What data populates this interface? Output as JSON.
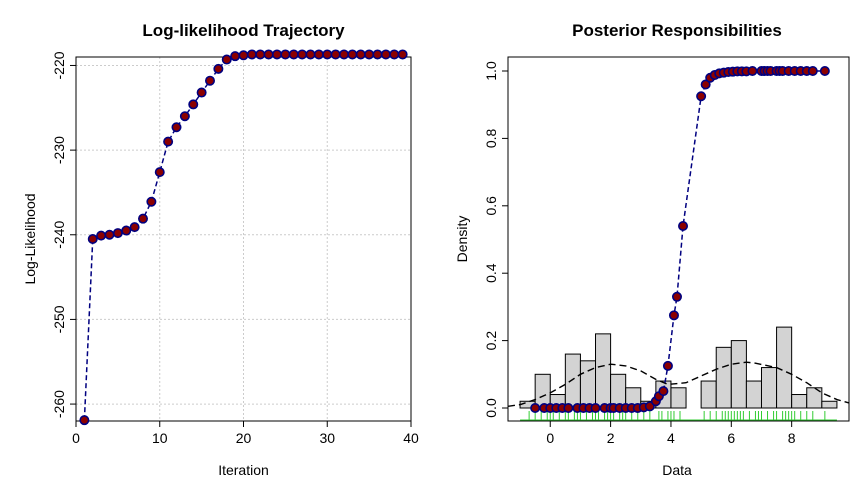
{
  "chart_data": [
    {
      "type": "line",
      "title": "Log-likelihood Trajectory",
      "xlabel": "Iteration",
      "ylabel": "Log-Likelihood",
      "xlim": [
        0,
        40
      ],
      "ylim": [
        -262,
        -219
      ],
      "x_ticks": [
        0,
        10,
        20,
        30,
        40
      ],
      "y_ticks": [
        -260,
        -250,
        -240,
        -230,
        -220
      ],
      "x_tick_labels": [
        "0",
        "10",
        "20",
        "30",
        "40"
      ],
      "y_tick_labels": [
        "-260",
        "-250",
        "-240",
        "-230",
        "-220"
      ],
      "grid": true,
      "line_color": "#000080",
      "marker_fill": "#8b0000",
      "marker_edge": "#000080",
      "series": [
        {
          "x": [
            1,
            2,
            3,
            4,
            5,
            6,
            7,
            8,
            9,
            10,
            11,
            12,
            13,
            14,
            15,
            16,
            17,
            18,
            19,
            20,
            21,
            22,
            23,
            24,
            25,
            26,
            27,
            28,
            29,
            30,
            31,
            32,
            33,
            34,
            35,
            36,
            37,
            38,
            39
          ],
          "values": [
            -261.9,
            -240.5,
            -240.1,
            -240.0,
            -239.8,
            -239.5,
            -239.1,
            -238.1,
            -236.1,
            -232.6,
            -229.0,
            -227.3,
            -226.0,
            -224.6,
            -223.2,
            -221.8,
            -220.4,
            -219.3,
            -218.9,
            -218.8,
            -218.7,
            -218.7,
            -218.7,
            -218.7,
            -218.7,
            -218.7,
            -218.7,
            -218.7,
            -218.7,
            -218.7,
            -218.7,
            -218.7,
            -218.7,
            -218.7,
            -218.7,
            -218.7,
            -218.7,
            -218.7,
            -218.7
          ]
        }
      ]
    },
    {
      "type": "bar",
      "title": "Posterior Responsibilities",
      "xlabel": "Data",
      "ylabel": "Density",
      "xlim": [
        -1.4,
        9.9
      ],
      "ylim": [
        0,
        1.0
      ],
      "x_ticks": [
        0,
        2,
        4,
        6,
        8
      ],
      "y_ticks": [
        0.0,
        0.2,
        0.4,
        0.6,
        0.8,
        1.0
      ],
      "x_tick_labels": [
        "0",
        "2",
        "4",
        "6",
        "8"
      ],
      "y_tick_labels": [
        "0.0",
        "0.2",
        "0.4",
        "0.6",
        "0.8",
        "1.0"
      ],
      "grid": false,
      "histogram": {
        "bin_edges": [
          -1.0,
          -0.5,
          0.0,
          0.5,
          1.0,
          1.5,
          2.0,
          2.5,
          3.0,
          3.5,
          4.0,
          4.5,
          5.0,
          5.5,
          6.0,
          6.5,
          7.0,
          7.5,
          8.0,
          8.5,
          9.0,
          9.5
        ],
        "densities": [
          0.02,
          0.1,
          0.04,
          0.16,
          0.14,
          0.22,
          0.1,
          0.06,
          0.02,
          0.08,
          0.06,
          0.0,
          0.08,
          0.18,
          0.2,
          0.08,
          0.12,
          0.24,
          0.04,
          0.06,
          0.02
        ],
        "fill": "#d3d3d3"
      },
      "mixture_density": {
        "x": [
          -1.4,
          -1.0,
          -0.5,
          0.0,
          0.5,
          1.0,
          1.5,
          2.0,
          2.5,
          3.0,
          3.5,
          3.9,
          4.5,
          5.0,
          5.5,
          6.0,
          6.5,
          6.8,
          7.5,
          8.0,
          8.5,
          9.0,
          9.5,
          9.9
        ],
        "values": [
          0.005,
          0.01,
          0.025,
          0.045,
          0.07,
          0.1,
          0.12,
          0.13,
          0.125,
          0.11,
          0.085,
          0.07,
          0.075,
          0.095,
          0.115,
          0.13,
          0.136,
          0.133,
          0.12,
          0.1,
          0.075,
          0.045,
          0.025,
          0.015
        ],
        "style": "dashed"
      },
      "rug": {
        "x": [
          -0.7,
          -0.5,
          -0.3,
          -0.1,
          0.0,
          0.1,
          0.3,
          0.5,
          0.6,
          0.8,
          0.9,
          1.0,
          1.2,
          1.4,
          1.5,
          1.6,
          1.8,
          1.9,
          2.0,
          2.1,
          2.3,
          2.4,
          2.5,
          2.7,
          2.9,
          3.1,
          3.3,
          3.6,
          3.7,
          3.9,
          4.0,
          4.1,
          4.3,
          5.1,
          5.3,
          5.5,
          5.7,
          5.8,
          5.9,
          6.0,
          6.1,
          6.2,
          6.3,
          6.4,
          6.6,
          6.8,
          6.9,
          7.0,
          7.2,
          7.4,
          7.5,
          7.7,
          7.8,
          7.9,
          8.0,
          8.1,
          8.3,
          8.5,
          8.7,
          9.1
        ],
        "color": "#33cc33"
      },
      "responsibilities": {
        "x": [
          -0.5,
          -0.2,
          0.0,
          0.2,
          0.4,
          0.6,
          0.9,
          1.1,
          1.3,
          1.5,
          1.8,
          2.0,
          2.1,
          2.3,
          2.5,
          2.7,
          2.9,
          3.1,
          3.3,
          3.5,
          3.6,
          3.75,
          3.9,
          4.1,
          4.2,
          4.4,
          5.0,
          5.15,
          5.3,
          5.45,
          5.6,
          5.75,
          5.9,
          6.05,
          6.2,
          6.35,
          6.5,
          6.7,
          7.0,
          7.1,
          7.2,
          7.3,
          7.5,
          7.6,
          7.7,
          7.9,
          8.1,
          8.3,
          8.5,
          8.7,
          9.1
        ],
        "values": [
          0.0,
          0.0,
          0.0,
          0.0,
          0.0,
          0.0,
          0.0,
          0.0,
          0.0,
          0.0,
          0.0,
          0.0,
          0.0,
          0.0,
          0.0,
          0.0,
          0.0,
          0.002,
          0.005,
          0.02,
          0.035,
          0.05,
          0.125,
          0.275,
          0.33,
          0.54,
          0.925,
          0.96,
          0.98,
          0.988,
          0.993,
          0.995,
          0.997,
          0.998,
          0.999,
          0.999,
          0.999,
          1.0,
          1.0,
          1.0,
          1.0,
          1.0,
          1.0,
          1.0,
          1.0,
          1.0,
          1.0,
          1.0,
          1.0,
          1.0,
          1.0
        ],
        "line_color": "#000080",
        "marker_fill": "#8b0000",
        "marker_edge": "#000080"
      }
    }
  ]
}
